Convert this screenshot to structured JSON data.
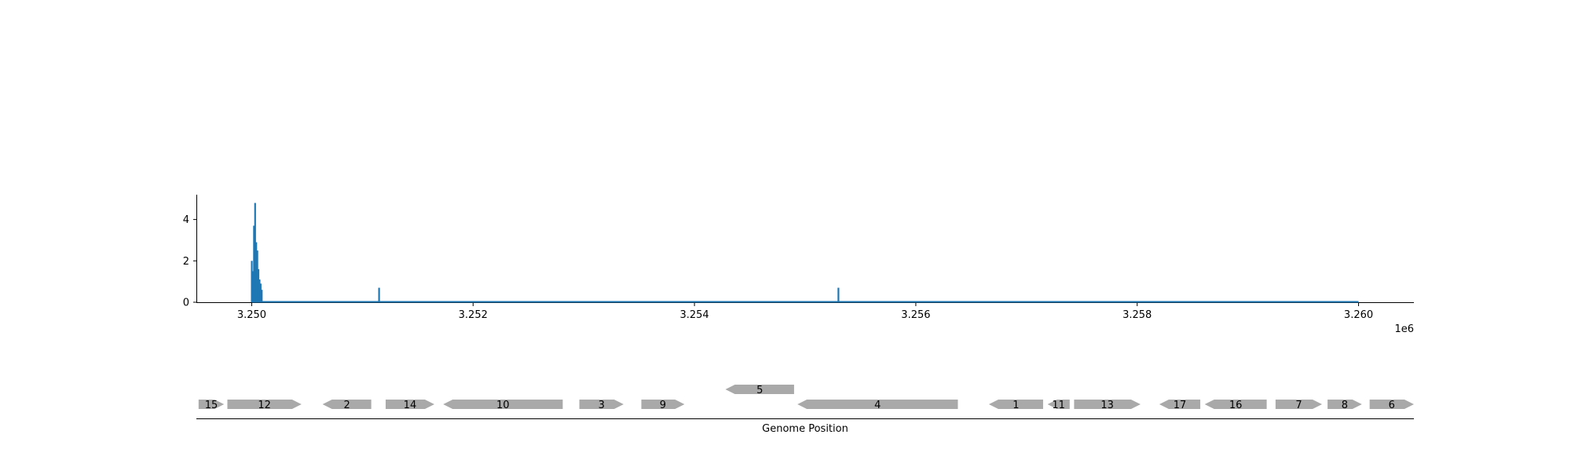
{
  "colors": {
    "coverage": "#1f77b4",
    "gene": "#a9a9a9",
    "axis": "#000000",
    "text": "#000000"
  },
  "chart_data": [
    {
      "type": "bar",
      "name": "coverage-track",
      "x_tick_labels": [
        "3.250",
        "3.252",
        "3.254",
        "3.256",
        "3.258",
        "3.260"
      ],
      "x_ticks": [
        3250000,
        3252000,
        3254000,
        3256000,
        3258000,
        3260000
      ],
      "x_offset_label": "1e6",
      "xlim": [
        3249500,
        3260500
      ],
      "y_tick_labels": [
        "0",
        "2",
        "4"
      ],
      "y_ticks": [
        0,
        2,
        4
      ],
      "ylim": [
        0,
        5.2
      ],
      "baseline_range": [
        3250000,
        3260000
      ],
      "x": [
        3250000,
        3250010,
        3250020,
        3250030,
        3250040,
        3250050,
        3250060,
        3250070,
        3250080,
        3250090,
        3251150,
        3255300
      ],
      "values": [
        2.0,
        1.5,
        3.7,
        4.8,
        2.9,
        2.5,
        1.6,
        1.1,
        0.9,
        0.6,
        0.7,
        0.7
      ],
      "grid": false
    },
    {
      "type": "gene-map",
      "name": "gene-track",
      "xlabel": "Genome Position",
      "genes": [
        {
          "label": "15",
          "start": 3249520,
          "end": 3249750,
          "strand": "+",
          "row": 0
        },
        {
          "label": "12",
          "start": 3249780,
          "end": 3250450,
          "strand": "+",
          "row": 0
        },
        {
          "label": "2",
          "start": 3250640,
          "end": 3251080,
          "strand": "-",
          "row": 0
        },
        {
          "label": "14",
          "start": 3251210,
          "end": 3251650,
          "strand": "+",
          "row": 0
        },
        {
          "label": "10",
          "start": 3251730,
          "end": 3252810,
          "strand": "-",
          "row": 0
        },
        {
          "label": "3",
          "start": 3252960,
          "end": 3253360,
          "strand": "+",
          "row": 0
        },
        {
          "label": "9",
          "start": 3253520,
          "end": 3253910,
          "strand": "+",
          "row": 0
        },
        {
          "label": "5",
          "start": 3254280,
          "end": 3254900,
          "strand": "-",
          "row": 1
        },
        {
          "label": "4",
          "start": 3254930,
          "end": 3256380,
          "strand": "-",
          "row": 0
        },
        {
          "label": "1",
          "start": 3256660,
          "end": 3257150,
          "strand": "-",
          "row": 0
        },
        {
          "label": "11",
          "start": 3257190,
          "end": 3257390,
          "strand": "-",
          "row": 0
        },
        {
          "label": "13",
          "start": 3257430,
          "end": 3258030,
          "strand": "+",
          "row": 0
        },
        {
          "label": "17",
          "start": 3258200,
          "end": 3258570,
          "strand": "-",
          "row": 0
        },
        {
          "label": "16",
          "start": 3258610,
          "end": 3259170,
          "strand": "-",
          "row": 0
        },
        {
          "label": "7",
          "start": 3259250,
          "end": 3259670,
          "strand": "+",
          "row": 0
        },
        {
          "label": "8",
          "start": 3259720,
          "end": 3260030,
          "strand": "+",
          "row": 0
        },
        {
          "label": "6",
          "start": 3260100,
          "end": 3260500,
          "strand": "+",
          "row": 0
        }
      ]
    }
  ]
}
